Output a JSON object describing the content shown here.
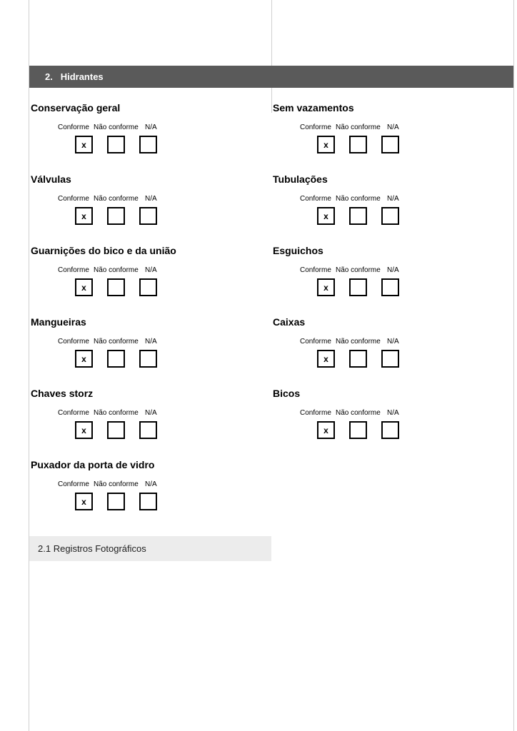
{
  "section": {
    "number": "2.",
    "title": "Hidrantes"
  },
  "options": {
    "conforme": "Conforme",
    "nao_conforme": "Não conforme",
    "na": "N/A"
  },
  "check_mark": "x",
  "left_items": [
    {
      "title": "Conservação geral",
      "checked": 0
    },
    {
      "title": "Válvulas",
      "checked": 0
    },
    {
      "title": "Guarnições do bico e da união",
      "checked": 0
    },
    {
      "title": "Mangueiras",
      "checked": 0
    },
    {
      "title": "Chaves storz",
      "checked": 0
    },
    {
      "title": "Puxador da porta de vidro",
      "checked": 0
    }
  ],
  "right_items": [
    {
      "title": "Sem vazamentos",
      "checked": 0
    },
    {
      "title": "Tubulações",
      "checked": 0
    },
    {
      "title": "Esguichos",
      "checked": 0
    },
    {
      "title": "Caixas",
      "checked": 0
    },
    {
      "title": "Bicos",
      "checked": 0
    }
  ],
  "subsection": {
    "number": "2.1",
    "title": "Registros Fotográficos"
  },
  "colors": {
    "header_bg": "#5a5a5a",
    "header_text": "#ffffff",
    "border": "#d0d0d0",
    "subsection_bg": "#ececec",
    "checkbox_border": "#000000",
    "text": "#000000"
  },
  "fontsize": {
    "section_header": 13,
    "item_title": 14,
    "option_label": 10,
    "subsection": 13,
    "check_mark": 12
  }
}
